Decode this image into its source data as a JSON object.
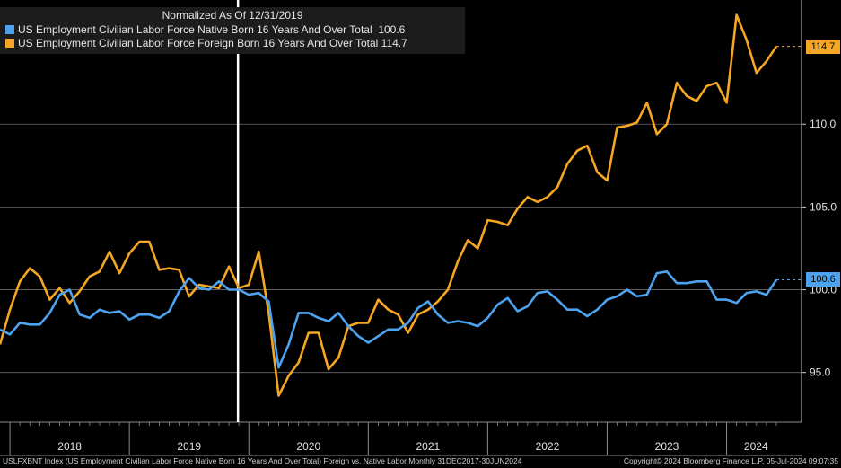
{
  "chart_data": {
    "type": "line",
    "title": "Normalized As Of 12/31/2019",
    "ylim": [
      92.0,
      117.5
    ],
    "yticks": [
      95.0,
      100.0,
      105.0,
      110.0
    ],
    "ytick_labels": [
      "95.0",
      "100.0",
      "105.0",
      "110.0"
    ],
    "x_year_labels": [
      "2018",
      "2019",
      "2020",
      "2021",
      "2022",
      "2023",
      "2024"
    ],
    "grid": true,
    "legend_position": "top-left",
    "marker_date": "2019-12",
    "x": [
      "2017-12",
      "2018-01",
      "2018-02",
      "2018-03",
      "2018-04",
      "2018-05",
      "2018-06",
      "2018-07",
      "2018-08",
      "2018-09",
      "2018-10",
      "2018-11",
      "2018-12",
      "2019-01",
      "2019-02",
      "2019-03",
      "2019-04",
      "2019-05",
      "2019-06",
      "2019-07",
      "2019-08",
      "2019-09",
      "2019-10",
      "2019-11",
      "2019-12",
      "2020-01",
      "2020-02",
      "2020-03",
      "2020-04",
      "2020-05",
      "2020-06",
      "2020-07",
      "2020-08",
      "2020-09",
      "2020-10",
      "2020-11",
      "2020-12",
      "2021-01",
      "2021-02",
      "2021-03",
      "2021-04",
      "2021-05",
      "2021-06",
      "2021-07",
      "2021-08",
      "2021-09",
      "2021-10",
      "2021-11",
      "2021-12",
      "2022-01",
      "2022-02",
      "2022-03",
      "2022-04",
      "2022-05",
      "2022-06",
      "2022-07",
      "2022-08",
      "2022-09",
      "2022-10",
      "2022-11",
      "2022-12",
      "2023-01",
      "2023-02",
      "2023-03",
      "2023-04",
      "2023-05",
      "2023-06",
      "2023-07",
      "2023-08",
      "2023-09",
      "2023-10",
      "2023-11",
      "2023-12",
      "2024-01",
      "2024-02",
      "2024-03",
      "2024-04",
      "2024-05",
      "2024-06"
    ],
    "series": [
      {
        "name": "US Employment Civilian Labor Force Native Born 16 Years And Over Total",
        "last_label": "100.6",
        "color": "#4ea3f0",
        "values": [
          97.6,
          97.3,
          98.0,
          97.9,
          97.9,
          98.6,
          99.7,
          100.0,
          98.5,
          98.3,
          98.8,
          98.6,
          98.7,
          98.2,
          98.5,
          98.5,
          98.3,
          98.7,
          99.9,
          100.7,
          100.1,
          100.0,
          100.5,
          100.0,
          100.0,
          99.7,
          99.8,
          99.3,
          95.3,
          96.7,
          98.6,
          98.6,
          98.3,
          98.1,
          98.6,
          97.8,
          97.2,
          96.8,
          97.2,
          97.6,
          97.6,
          98.0,
          98.9,
          99.3,
          98.5,
          98.0,
          98.1,
          98.0,
          97.8,
          98.3,
          99.1,
          99.5,
          98.7,
          99.0,
          99.8,
          99.9,
          99.4,
          98.8,
          98.8,
          98.4,
          98.8,
          99.4,
          99.6,
          100.0,
          99.6,
          99.7,
          101.0,
          101.1,
          100.4,
          100.4,
          100.5,
          100.5,
          99.4,
          99.4,
          99.2,
          99.8,
          99.9,
          99.7,
          100.6
        ]
      },
      {
        "name": "US Employment Civilian Labor Force Foreign Born 16 Years And Over Total",
        "last_label": "114.7",
        "color": "#f5a623",
        "values": [
          96.7,
          98.8,
          100.5,
          101.3,
          100.8,
          99.4,
          100.1,
          99.2,
          99.9,
          100.8,
          101.1,
          102.3,
          101.0,
          102.2,
          102.9,
          102.9,
          101.2,
          101.3,
          101.2,
          99.6,
          100.3,
          100.2,
          100.1,
          101.4,
          100.1,
          100.3,
          102.3,
          98.6,
          93.6,
          94.8,
          95.6,
          97.4,
          97.4,
          95.2,
          95.9,
          97.8,
          98.0,
          98.0,
          99.4,
          98.8,
          98.5,
          97.4,
          98.5,
          98.8,
          99.3,
          100.0,
          101.7,
          103.0,
          102.5,
          104.2,
          104.1,
          103.9,
          104.9,
          105.6,
          105.3,
          105.6,
          106.2,
          107.6,
          108.4,
          108.7,
          107.1,
          106.6,
          109.8,
          109.9,
          110.1,
          111.3,
          109.4,
          110.0,
          112.5,
          111.7,
          111.4,
          112.3,
          112.5,
          111.3,
          116.6,
          115.1,
          113.1,
          113.8,
          114.7
        ]
      }
    ]
  },
  "footer": {
    "left": "USLFXBNT Index (US Employment Civilian Labor Force Native Born 16 Years And Over Total) Foreign vs. Native Labor  Monthly 31DEC2017-30JUN2024",
    "right": "Copyright© 2024 Bloomberg Finance L.P.   05-Jul-2024 09:07:35"
  }
}
